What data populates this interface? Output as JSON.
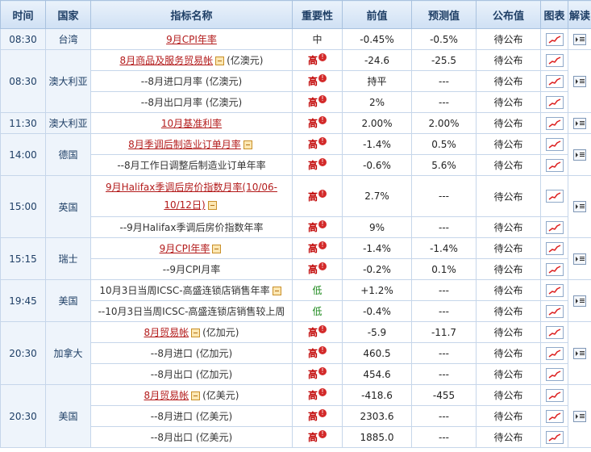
{
  "headers": {
    "time": "时间",
    "country": "国家",
    "indicator": "指标名称",
    "importance": "重要性",
    "previous": "前值",
    "forecast": "预测值",
    "actual": "公布值",
    "chart": "图表",
    "interpret": "解读"
  },
  "importance_labels": {
    "high": "高",
    "mid": "中",
    "low": "低"
  },
  "events": [
    {
      "time": "08:30",
      "country": "台湾",
      "rows": [
        {
          "name": "9月CPI年率",
          "link": true,
          "expand": false,
          "unit": "",
          "importance": "中",
          "level": "mid",
          "previous": "-0.45%",
          "forecast": "-0.5%",
          "actual": "待公布"
        }
      ]
    },
    {
      "time": "08:30",
      "country": "澳大利亚",
      "rows": [
        {
          "name": "8月商品及服务贸易帐",
          "link": true,
          "expand": true,
          "unit": "(亿澳元)",
          "importance": "高",
          "level": "high",
          "previous": "-24.6",
          "forecast": "-25.5",
          "actual": "待公布"
        },
        {
          "name": "--8月进口月率 (亿澳元)",
          "link": false,
          "expand": false,
          "unit": "",
          "importance": "高",
          "level": "high",
          "previous": "持平",
          "forecast": "---",
          "actual": "待公布"
        },
        {
          "name": "--8月出口月率 (亿澳元)",
          "link": false,
          "expand": false,
          "unit": "",
          "importance": "高",
          "level": "high",
          "previous": "2%",
          "forecast": "---",
          "actual": "待公布"
        }
      ]
    },
    {
      "time": "11:30",
      "country": "澳大利亚",
      "rows": [
        {
          "name": "10月基准利率",
          "link": true,
          "expand": false,
          "unit": "",
          "importance": "高",
          "level": "high",
          "previous": "2.00%",
          "forecast": "2.00%",
          "actual": "待公布"
        }
      ]
    },
    {
      "time": "14:00",
      "country": "德国",
      "rows": [
        {
          "name": "8月季调后制造业订单月率",
          "link": true,
          "expand": true,
          "unit": "",
          "importance": "高",
          "level": "high",
          "previous": "-1.4%",
          "forecast": "0.5%",
          "actual": "待公布"
        },
        {
          "name": "--8月工作日调整后制造业订单年率",
          "link": false,
          "expand": false,
          "unit": "",
          "importance": "高",
          "level": "high",
          "previous": "-0.6%",
          "forecast": "5.6%",
          "actual": "待公布"
        }
      ]
    },
    {
      "time": "15:00",
      "country": "英国",
      "rows": [
        {
          "name": "9月Halifax季调后房价指数月率(10/06-",
          "name2": "10/12日)",
          "link": true,
          "expand": true,
          "unit": "",
          "importance": "高",
          "level": "high",
          "previous": "2.7%",
          "forecast": "---",
          "actual": "待公布",
          "tall": true
        },
        {
          "name": "--9月Halifax季调后房价指数年率",
          "link": false,
          "expand": false,
          "unit": "",
          "importance": "高",
          "level": "high",
          "previous": "9%",
          "forecast": "---",
          "actual": "待公布"
        }
      ]
    },
    {
      "time": "15:15",
      "country": "瑞士",
      "rows": [
        {
          "name": "9月CPI年率",
          "link": true,
          "expand": true,
          "unit": "",
          "importance": "高",
          "level": "high",
          "previous": "-1.4%",
          "forecast": "-1.4%",
          "actual": "待公布"
        },
        {
          "name": "--9月CPI月率",
          "link": false,
          "expand": false,
          "unit": "",
          "importance": "高",
          "level": "high",
          "previous": "-0.2%",
          "forecast": "0.1%",
          "actual": "待公布"
        }
      ]
    },
    {
      "time": "19:45",
      "country": "美国",
      "rows": [
        {
          "name": "10月3日当周ICSC-高盛连锁店销售年率",
          "link": false,
          "expand": true,
          "unit": "",
          "importance": "低",
          "level": "low",
          "previous": "+1.2%",
          "forecast": "---",
          "actual": "待公布"
        },
        {
          "name": "--10月3日当周ICSC-高盛连锁店销售较上周",
          "link": false,
          "expand": false,
          "unit": "",
          "importance": "低",
          "level": "low",
          "previous": "-0.4%",
          "forecast": "---",
          "actual": "待公布"
        }
      ]
    },
    {
      "time": "20:30",
      "country": "加拿大",
      "rows": [
        {
          "name": "8月贸易帐",
          "link": true,
          "expand": true,
          "unit": "(亿加元)",
          "importance": "高",
          "level": "high",
          "previous": "-5.9",
          "forecast": "-11.7",
          "actual": "待公布"
        },
        {
          "name": "--8月进口 (亿加元)",
          "link": false,
          "expand": false,
          "unit": "",
          "importance": "高",
          "level": "high",
          "previous": "460.5",
          "forecast": "---",
          "actual": "待公布"
        },
        {
          "name": "--8月出口 (亿加元)",
          "link": false,
          "expand": false,
          "unit": "",
          "importance": "高",
          "level": "high",
          "previous": "454.6",
          "forecast": "---",
          "actual": "待公布"
        }
      ]
    },
    {
      "time": "20:30",
      "country": "美国",
      "rows": [
        {
          "name": "8月贸易帐",
          "link": true,
          "expand": true,
          "unit": "(亿美元)",
          "importance": "高",
          "level": "high",
          "previous": "-418.6",
          "forecast": "-455",
          "actual": "待公布"
        },
        {
          "name": "--8月进口 (亿美元)",
          "link": false,
          "expand": false,
          "unit": "",
          "importance": "高",
          "level": "high",
          "previous": "2303.6",
          "forecast": "---",
          "actual": "待公布"
        },
        {
          "name": "--8月出口 (亿美元)",
          "link": false,
          "expand": false,
          "unit": "",
          "importance": "高",
          "level": "high",
          "previous": "1885.0",
          "forecast": "---",
          "actual": "待公布"
        }
      ]
    }
  ]
}
